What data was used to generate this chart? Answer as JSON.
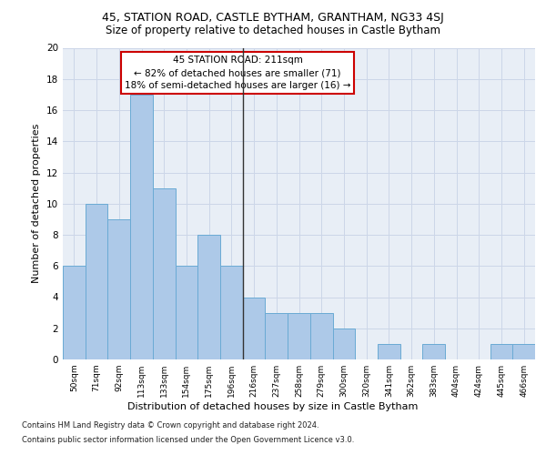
{
  "title1": "45, STATION ROAD, CASTLE BYTHAM, GRANTHAM, NG33 4SJ",
  "title2": "Size of property relative to detached houses in Castle Bytham",
  "xlabel": "Distribution of detached houses by size in Castle Bytham",
  "ylabel": "Number of detached properties",
  "categories": [
    "50sqm",
    "71sqm",
    "92sqm",
    "113sqm",
    "133sqm",
    "154sqm",
    "175sqm",
    "196sqm",
    "216sqm",
    "237sqm",
    "258sqm",
    "279sqm",
    "300sqm",
    "320sqm",
    "341sqm",
    "362sqm",
    "383sqm",
    "404sqm",
    "424sqm",
    "445sqm",
    "466sqm"
  ],
  "values": [
    6,
    10,
    9,
    17,
    11,
    6,
    8,
    6,
    4,
    3,
    3,
    3,
    2,
    0,
    1,
    0,
    1,
    0,
    0,
    1,
    1
  ],
  "bar_color": "#adc9e8",
  "bar_edge_color": "#6aaad4",
  "vline_color": "#333333",
  "annotation_text": "45 STATION ROAD: 211sqm\n← 82% of detached houses are smaller (71)\n18% of semi-detached houses are larger (16) →",
  "annotation_box_color": "#ffffff",
  "annotation_box_edge_color": "#cc0000",
  "footnote1": "Contains HM Land Registry data © Crown copyright and database right 2024.",
  "footnote2": "Contains public sector information licensed under the Open Government Licence v3.0.",
  "ylim": [
    0,
    20
  ],
  "yticks": [
    0,
    2,
    4,
    6,
    8,
    10,
    12,
    14,
    16,
    18,
    20
  ],
  "grid_color": "#ccd6e8",
  "bg_color": "#e8eef6"
}
